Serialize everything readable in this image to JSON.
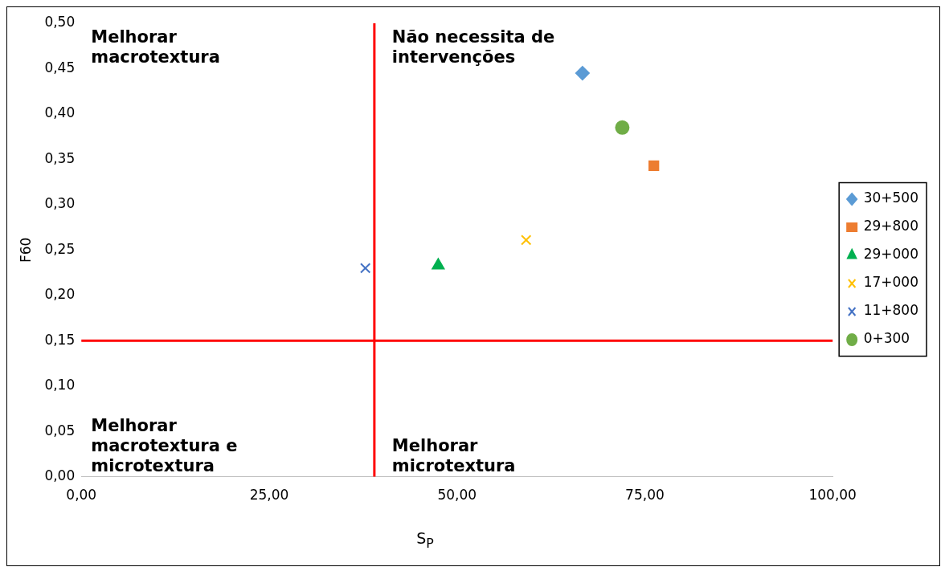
{
  "chart_data": {
    "type": "scatter",
    "xlabel": "S$_{P}$",
    "ylabel": "F60",
    "xlim": [
      0,
      100
    ],
    "xticks": [
      {
        "value": 0,
        "label": "0,00"
      },
      {
        "value": 25,
        "label": "25,00"
      },
      {
        "value": 50,
        "label": "50,00"
      },
      {
        "value": 75,
        "label": "75,00"
      },
      {
        "value": 100,
        "label": "100,00"
      }
    ],
    "ylim": [
      0,
      0.5
    ],
    "yticks": [
      {
        "value": 0,
        "label": "0,00"
      },
      {
        "value": 0.05,
        "label": "0,05"
      },
      {
        "value": 0.1,
        "label": "0,10"
      },
      {
        "value": 0.15,
        "label": "0,15"
      },
      {
        "value": 0.2,
        "label": "0,20"
      },
      {
        "value": 0.25,
        "label": "0,25"
      },
      {
        "value": 0.3,
        "label": "0,30"
      },
      {
        "value": 0.35,
        "label": "0,35"
      },
      {
        "value": 0.4,
        "label": "0,40"
      },
      {
        "value": 0.45,
        "label": "0,45"
      },
      {
        "value": 0.5,
        "label": "0,50"
      }
    ],
    "grid": false,
    "legend": "right",
    "series": [
      {
        "name": "30+500",
        "color": "#5b9bd5",
        "marker": "diamond",
        "x": [
          66.7
        ],
        "values": [
          0.445
        ]
      },
      {
        "name": "29+800",
        "color": "#ed7d31",
        "marker": "square",
        "x": [
          76.2
        ],
        "values": [
          0.343
        ]
      },
      {
        "name": "29+000",
        "color": "#00b050",
        "marker": "triangle",
        "x": [
          47.5
        ],
        "values": [
          0.233
        ]
      },
      {
        "name": "17+000",
        "color": "#ffc000",
        "marker": "cross",
        "x": [
          59.2
        ],
        "values": [
          0.261
        ]
      },
      {
        "name": "11+800",
        "color": "#4472c4",
        "marker": "cross",
        "x": [
          37.8
        ],
        "values": [
          0.23
        ]
      },
      {
        "name": "0+300",
        "color": "#70ad47",
        "marker": "circle",
        "x": [
          72
        ],
        "values": [
          0.385
        ]
      }
    ],
    "ref_lines": [
      {
        "axis": "x",
        "value": 39,
        "color": "#ff0000"
      },
      {
        "axis": "y",
        "value": 0.15,
        "color": "#ff0000"
      }
    ],
    "annotations": [
      "Melhorar\nmacrotextura",
      "Não necessita de\nintervenções",
      "Melhorar\nmacrotextura e\nmicrotextura",
      "Melhorar\nmicrotextura"
    ]
  }
}
